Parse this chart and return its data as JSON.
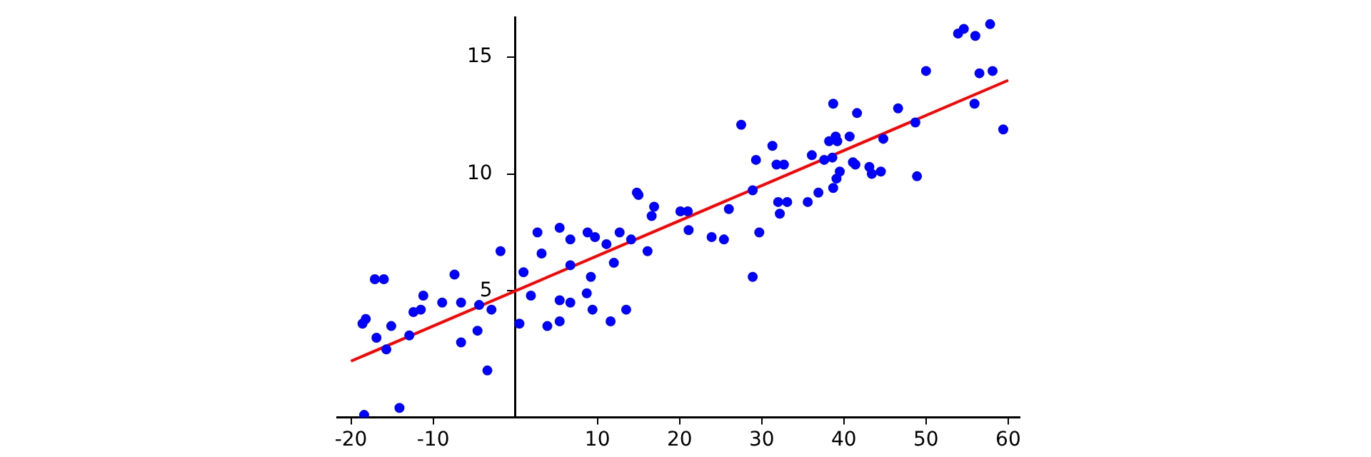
{
  "chart_data": {
    "type": "scatter",
    "xlim": [
      -21.7,
      61.4
    ],
    "ylim": [
      -0.4,
      16.7
    ],
    "xticks": [
      -20,
      -10,
      10,
      20,
      30,
      40,
      50,
      60
    ],
    "yticks": [
      5,
      10,
      15
    ],
    "grid": false,
    "legend": false,
    "marker": "circle",
    "series": [
      {
        "type": "scatter",
        "color": "#0000ff",
        "x": [
          -18.6,
          -18.2,
          -18.4,
          -17.1,
          -16.0,
          -16.9,
          -15.7,
          -15.1,
          -14.1,
          -12.9,
          -12.4,
          -11.5,
          -11.2,
          -8.9,
          -7.4,
          -6.6,
          -6.6,
          -4.6,
          -4.4,
          -3.4,
          -2.9,
          -1.8,
          0.5,
          1.0,
          1.9,
          2.7,
          3.2,
          3.9,
          5.4,
          5.4,
          5.4,
          6.7,
          6.7,
          6.7,
          8.7,
          8.8,
          9.2,
          9.4,
          9.7,
          11.1,
          11.6,
          12.0,
          12.7,
          13.5,
          14.1,
          14.8,
          15.0,
          16.1,
          16.6,
          16.9,
          20.1,
          21.0,
          21.1,
          23.9,
          25.4,
          26.0,
          27.5,
          28.9,
          28.9,
          29.3,
          29.7,
          31.3,
          31.8,
          32.7,
          32.0,
          32.2,
          33.1,
          35.6,
          36.1,
          36.9,
          37.6,
          38.2,
          38.6,
          38.7,
          38.7,
          39.0,
          39.2,
          39.1,
          39.5,
          40.7,
          41.1,
          41.4,
          41.6,
          43.1,
          43.4,
          44.5,
          44.8,
          46.6,
          48.7,
          48.9,
          50.0,
          53.9,
          54.6,
          56.0,
          55.9,
          56.5,
          57.8,
          58.1,
          59.4
        ],
        "values": [
          3.6,
          3.8,
          -0.3,
          5.5,
          5.5,
          3.0,
          2.5,
          3.5,
          0.0,
          3.1,
          4.1,
          4.2,
          4.8,
          4.5,
          5.7,
          4.5,
          2.8,
          3.3,
          4.4,
          1.6,
          4.2,
          6.7,
          3.6,
          5.8,
          4.8,
          7.5,
          6.6,
          3.5,
          7.7,
          4.6,
          3.7,
          7.2,
          6.1,
          4.5,
          4.9,
          7.5,
          5.6,
          4.2,
          7.3,
          7.0,
          3.7,
          6.2,
          7.5,
          4.2,
          7.2,
          9.2,
          9.1,
          6.7,
          8.2,
          8.6,
          8.4,
          8.4,
          7.6,
          7.3,
          7.2,
          8.5,
          12.1,
          5.6,
          9.3,
          10.6,
          7.5,
          11.2,
          10.4,
          10.4,
          8.8,
          8.3,
          8.8,
          8.8,
          10.8,
          9.2,
          10.6,
          11.4,
          10.7,
          13.0,
          9.4,
          11.6,
          11.4,
          9.8,
          10.1,
          11.6,
          10.5,
          10.4,
          12.6,
          10.3,
          10.0,
          10.1,
          11.5,
          12.8,
          12.2,
          9.9,
          14.4,
          16.0,
          16.2,
          15.9,
          13.0,
          14.3,
          16.4,
          14.4,
          11.9
        ]
      },
      {
        "type": "line",
        "color": "#ff0000",
        "x": [
          -20,
          60
        ],
        "values": [
          2.0,
          14.0
        ],
        "marker": "none"
      }
    ]
  }
}
